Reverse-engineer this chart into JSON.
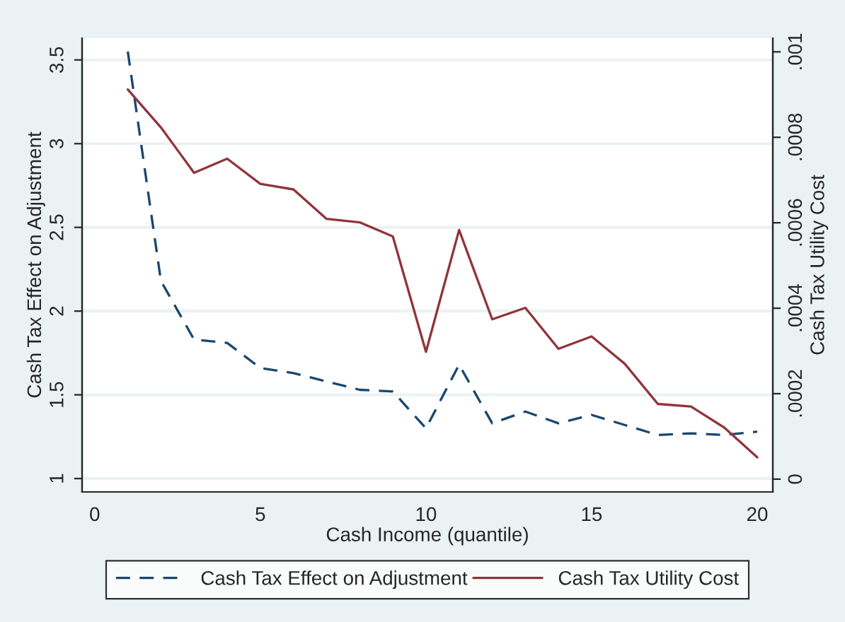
{
  "chart_data": {
    "type": "line",
    "xlabel": "Cash Income (quantile)",
    "ylabel": "Cash Tax Effect on Adjustment",
    "y2label": "Cash Tax Utility Cost",
    "x": [
      1,
      2,
      3,
      4,
      5,
      6,
      7,
      8,
      9,
      10,
      11,
      12,
      13,
      14,
      15,
      16,
      17,
      18,
      19,
      20
    ],
    "series": [
      {
        "name": "Cash Tax Effect on Adjustment",
        "color": "#1a476f",
        "line_style": "dashed",
        "values": [
          3.55,
          2.18,
          1.83,
          1.81,
          1.66,
          1.63,
          1.58,
          1.53,
          1.52,
          1.3,
          1.68,
          1.33,
          1.4,
          1.33,
          1.38,
          1.32,
          1.26,
          1.27,
          1.26,
          1.28
        ]
      },
      {
        "name": "Cash Tax Utility Cost",
        "color": "#90353b",
        "line_style": "solid",
        "axis": "y2",
        "values": [
          0.000912,
          0.000823,
          0.000717,
          0.00075,
          0.000691,
          0.000678,
          0.000609,
          0.000601,
          0.000568,
          0.000298,
          0.000583,
          0.000374,
          0.000401,
          0.000305,
          0.000334,
          0.00027,
          0.000176,
          0.00017,
          0.000121,
          5.1e-05
        ]
      }
    ],
    "xlim": [
      -0.38,
      20.47
    ],
    "xticks": [
      0,
      5,
      10,
      15,
      20
    ],
    "ylim": [
      0.92,
      3.63
    ],
    "yticks": [
      1,
      1.5,
      2,
      2.5,
      3,
      3.5
    ],
    "y2lim": [
      -3e-05,
      0.001032
    ],
    "y2ticks": [
      {
        "value": 0,
        "label": "0"
      },
      {
        "value": 0.0002,
        "label": ".0002"
      },
      {
        "value": 0.0004,
        "label": ".0004"
      },
      {
        "value": 0.0006,
        "label": ".0006"
      },
      {
        "value": 0.0008,
        "label": ".0008"
      },
      {
        "value": 0.001,
        "label": ".001"
      }
    ],
    "grid": "y",
    "legend": "bottom",
    "marker": "none"
  }
}
